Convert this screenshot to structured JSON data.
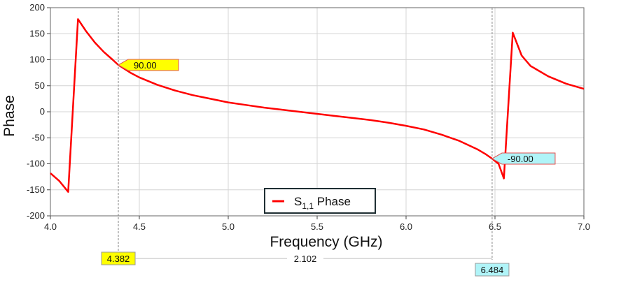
{
  "chart_data": {
    "type": "line",
    "xlabel": "Frequency (GHz)",
    "ylabel": "Phase",
    "xlim": [
      4.0,
      7.0
    ],
    "ylim": [
      -200,
      200
    ],
    "xticks": [
      "4.0",
      "4.5",
      "5.0",
      "5.5",
      "6.0",
      "6.5",
      "7.0"
    ],
    "yticks": [
      "200",
      "150",
      "100",
      "50",
      "0",
      "-50",
      "-100",
      "-150",
      "-200"
    ],
    "grid": true,
    "legend": {
      "position": "bottom-center",
      "label_main": "S",
      "label_sub": "1,1",
      "label_rest": " Phase"
    },
    "series": [
      {
        "name": "S1,1 Phase",
        "color": "#ff0000",
        "x": [
          4.0,
          4.05,
          4.1,
          4.155,
          4.2,
          4.25,
          4.3,
          4.35,
          4.382,
          4.45,
          4.5,
          4.6,
          4.7,
          4.8,
          4.9,
          5.0,
          5.1,
          5.2,
          5.3,
          5.4,
          5.5,
          5.6,
          5.7,
          5.8,
          5.9,
          6.0,
          6.1,
          6.2,
          6.3,
          6.4,
          6.45,
          6.484,
          6.52,
          6.55,
          6.58,
          6.6,
          6.65,
          6.7,
          6.8,
          6.9,
          7.0
        ],
        "y": [
          -118,
          -133,
          -154,
          178,
          155,
          133,
          115,
          100,
          90,
          75,
          66,
          52,
          41,
          32,
          25,
          18,
          13,
          8,
          4,
          0,
          -4,
          -8,
          -12,
          -16,
          -21,
          -27,
          -34,
          -44,
          -56,
          -72,
          -82,
          -90,
          -100,
          -128,
          40,
          152,
          108,
          88,
          68,
          54,
          44
        ]
      }
    ],
    "markers": [
      {
        "x": 4.382,
        "value_label": "90.00",
        "x_label": "4.382",
        "color": "#ffff00"
      },
      {
        "x": 6.484,
        "value_label": "-90.00",
        "x_label": "6.484",
        "color": "#b0f4f8"
      }
    ],
    "delta_label": "2.102"
  }
}
